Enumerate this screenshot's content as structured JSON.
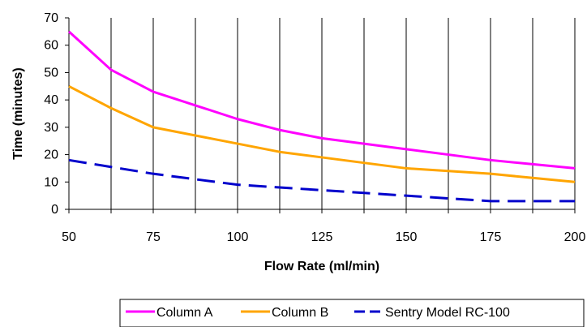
{
  "chart_data": {
    "type": "line",
    "xlabel": "Flow Rate (ml/min)",
    "ylabel": "Time (minutes)",
    "xlim": [
      50,
      200
    ],
    "ylim": [
      0,
      70
    ],
    "y_ticks": [
      0,
      10,
      20,
      30,
      40,
      50,
      60,
      70
    ],
    "x_tick_labels": [
      "50",
      "75",
      "100",
      "125",
      "150",
      "175",
      "200"
    ],
    "x": [
      50,
      62.5,
      75,
      87.5,
      100,
      112.5,
      125,
      137.5,
      150,
      162.5,
      175,
      187.5,
      200
    ],
    "series": [
      {
        "name": "Column A",
        "color": "#ff00ff",
        "dash": "solid",
        "values": [
          65,
          51,
          43,
          38,
          33,
          29,
          26,
          24,
          22,
          20,
          18,
          16.5,
          15
        ]
      },
      {
        "name": "Column B",
        "color": "#ffa500",
        "dash": "solid",
        "values": [
          45,
          37,
          30,
          27,
          24,
          21,
          19,
          17,
          15,
          14,
          13,
          11.5,
          10
        ]
      },
      {
        "name": "Sentry Model RC-100",
        "color": "#0000cc",
        "dash": "dashed",
        "values": [
          18,
          15.5,
          13,
          11,
          9,
          8,
          7,
          6,
          5,
          4,
          3,
          3,
          3
        ]
      }
    ],
    "grid": "vertical",
    "legend_position": "bottom"
  }
}
